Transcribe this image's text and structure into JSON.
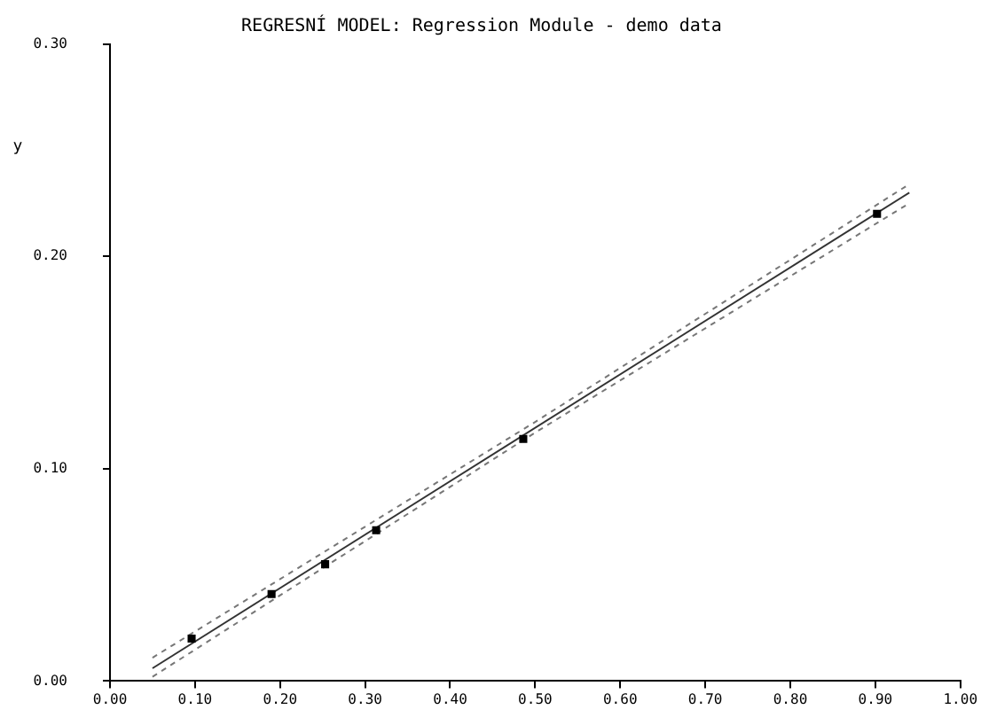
{
  "chart_data": {
    "type": "scatter",
    "title": "REGRESNÍ MODEL: Regression Module - demo data",
    "ylabel": "y",
    "xlim": [
      0,
      1
    ],
    "xticks": [
      {
        "value": 0,
        "label": "0.00"
      },
      {
        "value": 0.1,
        "label": "0.10"
      },
      {
        "value": 0.2,
        "label": "0.20"
      },
      {
        "value": 0.3,
        "label": "0.30"
      },
      {
        "value": 0.4,
        "label": "0.40"
      },
      {
        "value": 0.5,
        "label": "0.50"
      },
      {
        "value": 0.6,
        "label": "0.60"
      },
      {
        "value": 0.7,
        "label": "0.70"
      },
      {
        "value": 0.8,
        "label": "0.80"
      },
      {
        "value": 0.9,
        "label": "0.90"
      },
      {
        "value": 1,
        "label": "1.00"
      }
    ],
    "ylim": [
      0,
      0.3
    ],
    "yticks": [
      {
        "value": 0,
        "label": "0.00"
      },
      {
        "value": 0.1,
        "label": "0.10"
      },
      {
        "value": 0.2,
        "label": "0.20"
      },
      {
        "value": 0.3,
        "label": "0.30"
      }
    ],
    "grid": false,
    "legend": false,
    "series": [
      {
        "marker": "square",
        "color": "#000000",
        "x": [
          0.096,
          0.19,
          0.253,
          0.313,
          0.486,
          0.902
        ],
        "values": [
          0.02,
          0.041,
          0.055,
          0.071,
          0.114,
          0.22
        ]
      },
      {
        "type": "line",
        "color": "#333333",
        "line_style": "solid",
        "x": [
          0.05,
          0.94
        ],
        "values": [
          0.006,
          0.23
        ]
      },
      {
        "type": "line",
        "color": "#777777",
        "line_style": "dashed",
        "x": [
          0.05,
          0.5,
          0.94
        ],
        "values": [
          0.011,
          0.122,
          0.234
        ]
      },
      {
        "type": "line",
        "color": "#777777",
        "line_style": "dashed",
        "x": [
          0.05,
          0.5,
          0.94
        ],
        "values": [
          0.002,
          0.117,
          0.225
        ]
      }
    ]
  }
}
